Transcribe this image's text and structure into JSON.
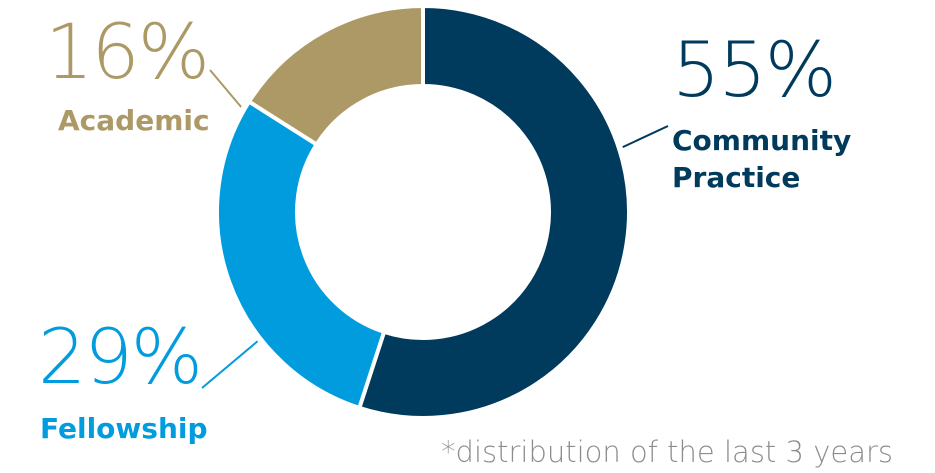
{
  "chart_data": {
    "type": "pie",
    "donut": true,
    "categories": [
      "Community Practice",
      "Fellowship",
      "Academic"
    ],
    "values": [
      55,
      29,
      16
    ],
    "value_labels": [
      "55%",
      "29%",
      "16%"
    ],
    "category_labels": [
      [
        "Community",
        "Practice"
      ],
      [
        "Fellowship"
      ],
      [
        "Academic"
      ]
    ],
    "colors": [
      "#003a5d",
      "#009cde",
      "#ad9966"
    ],
    "start_angle_deg": 0,
    "direction": "clockwise",
    "footnote": "*distribution of the last 3 years"
  }
}
